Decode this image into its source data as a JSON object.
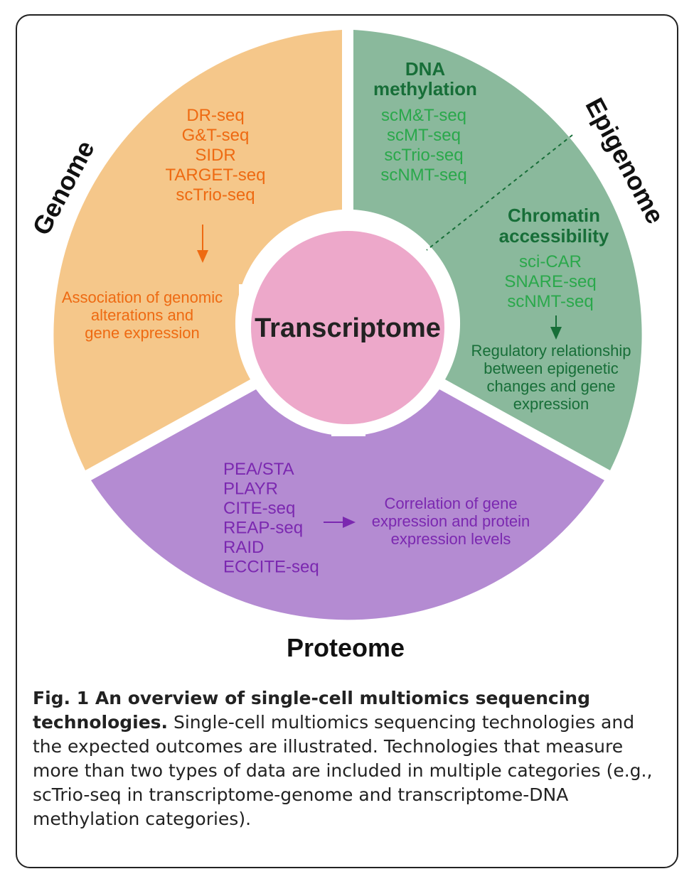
{
  "colors": {
    "genome": "#f5c78a",
    "epigenome": "#8ab99c",
    "proteome": "#b48bd2",
    "transcriptome": "#eda8ca",
    "genome_text": "#ee6a12",
    "epigenome_heading": "#176e38",
    "epigenome_text": "#2aa84b",
    "proteome_text": "#7b28b0"
  },
  "genome": {
    "title": "Genome",
    "methods": [
      "DR-seq",
      "G&T-seq",
      "SIDR",
      "TARGET-seq",
      "scTrio-seq"
    ],
    "outcome": [
      "Association of genomic",
      "alterations and",
      "gene expression"
    ]
  },
  "epigenome": {
    "title": "Epigenome",
    "dna_methylation": {
      "heading": [
        "DNA",
        "methylation"
      ],
      "methods": [
        "scM&T-seq",
        "scMT-seq",
        "scTrio-seq",
        "scNMT-seq"
      ]
    },
    "chromatin": {
      "heading": [
        "Chromatin",
        "accessibility"
      ],
      "methods": [
        "sci-CAR",
        "SNARE-seq",
        "scNMT-seq"
      ]
    },
    "outcome": [
      "Regulatory relationship",
      "between epigenetic",
      "changes and gene",
      "expression"
    ]
  },
  "proteome": {
    "title": "Proteome",
    "methods": [
      "PEA/STA",
      "PLAYR",
      "CITE-seq",
      "REAP-seq",
      "RAID",
      "ECCITE-seq"
    ],
    "outcome": [
      "Correlation of gene",
      "expression and protein",
      "expression levels"
    ]
  },
  "center": {
    "label": "Transcriptome"
  },
  "caption": {
    "title": "Fig. 1 An overview of single-cell multiomics sequencing technologies.",
    "body": " Single-cell multiomics sequencing technologies and the expected outcomes are illustrated. Technologies that measure more than two types of data are included in multiple categories (e.g., scTrio-seq in transcriptome-genome and transcriptome-DNA methylation categories)."
  }
}
